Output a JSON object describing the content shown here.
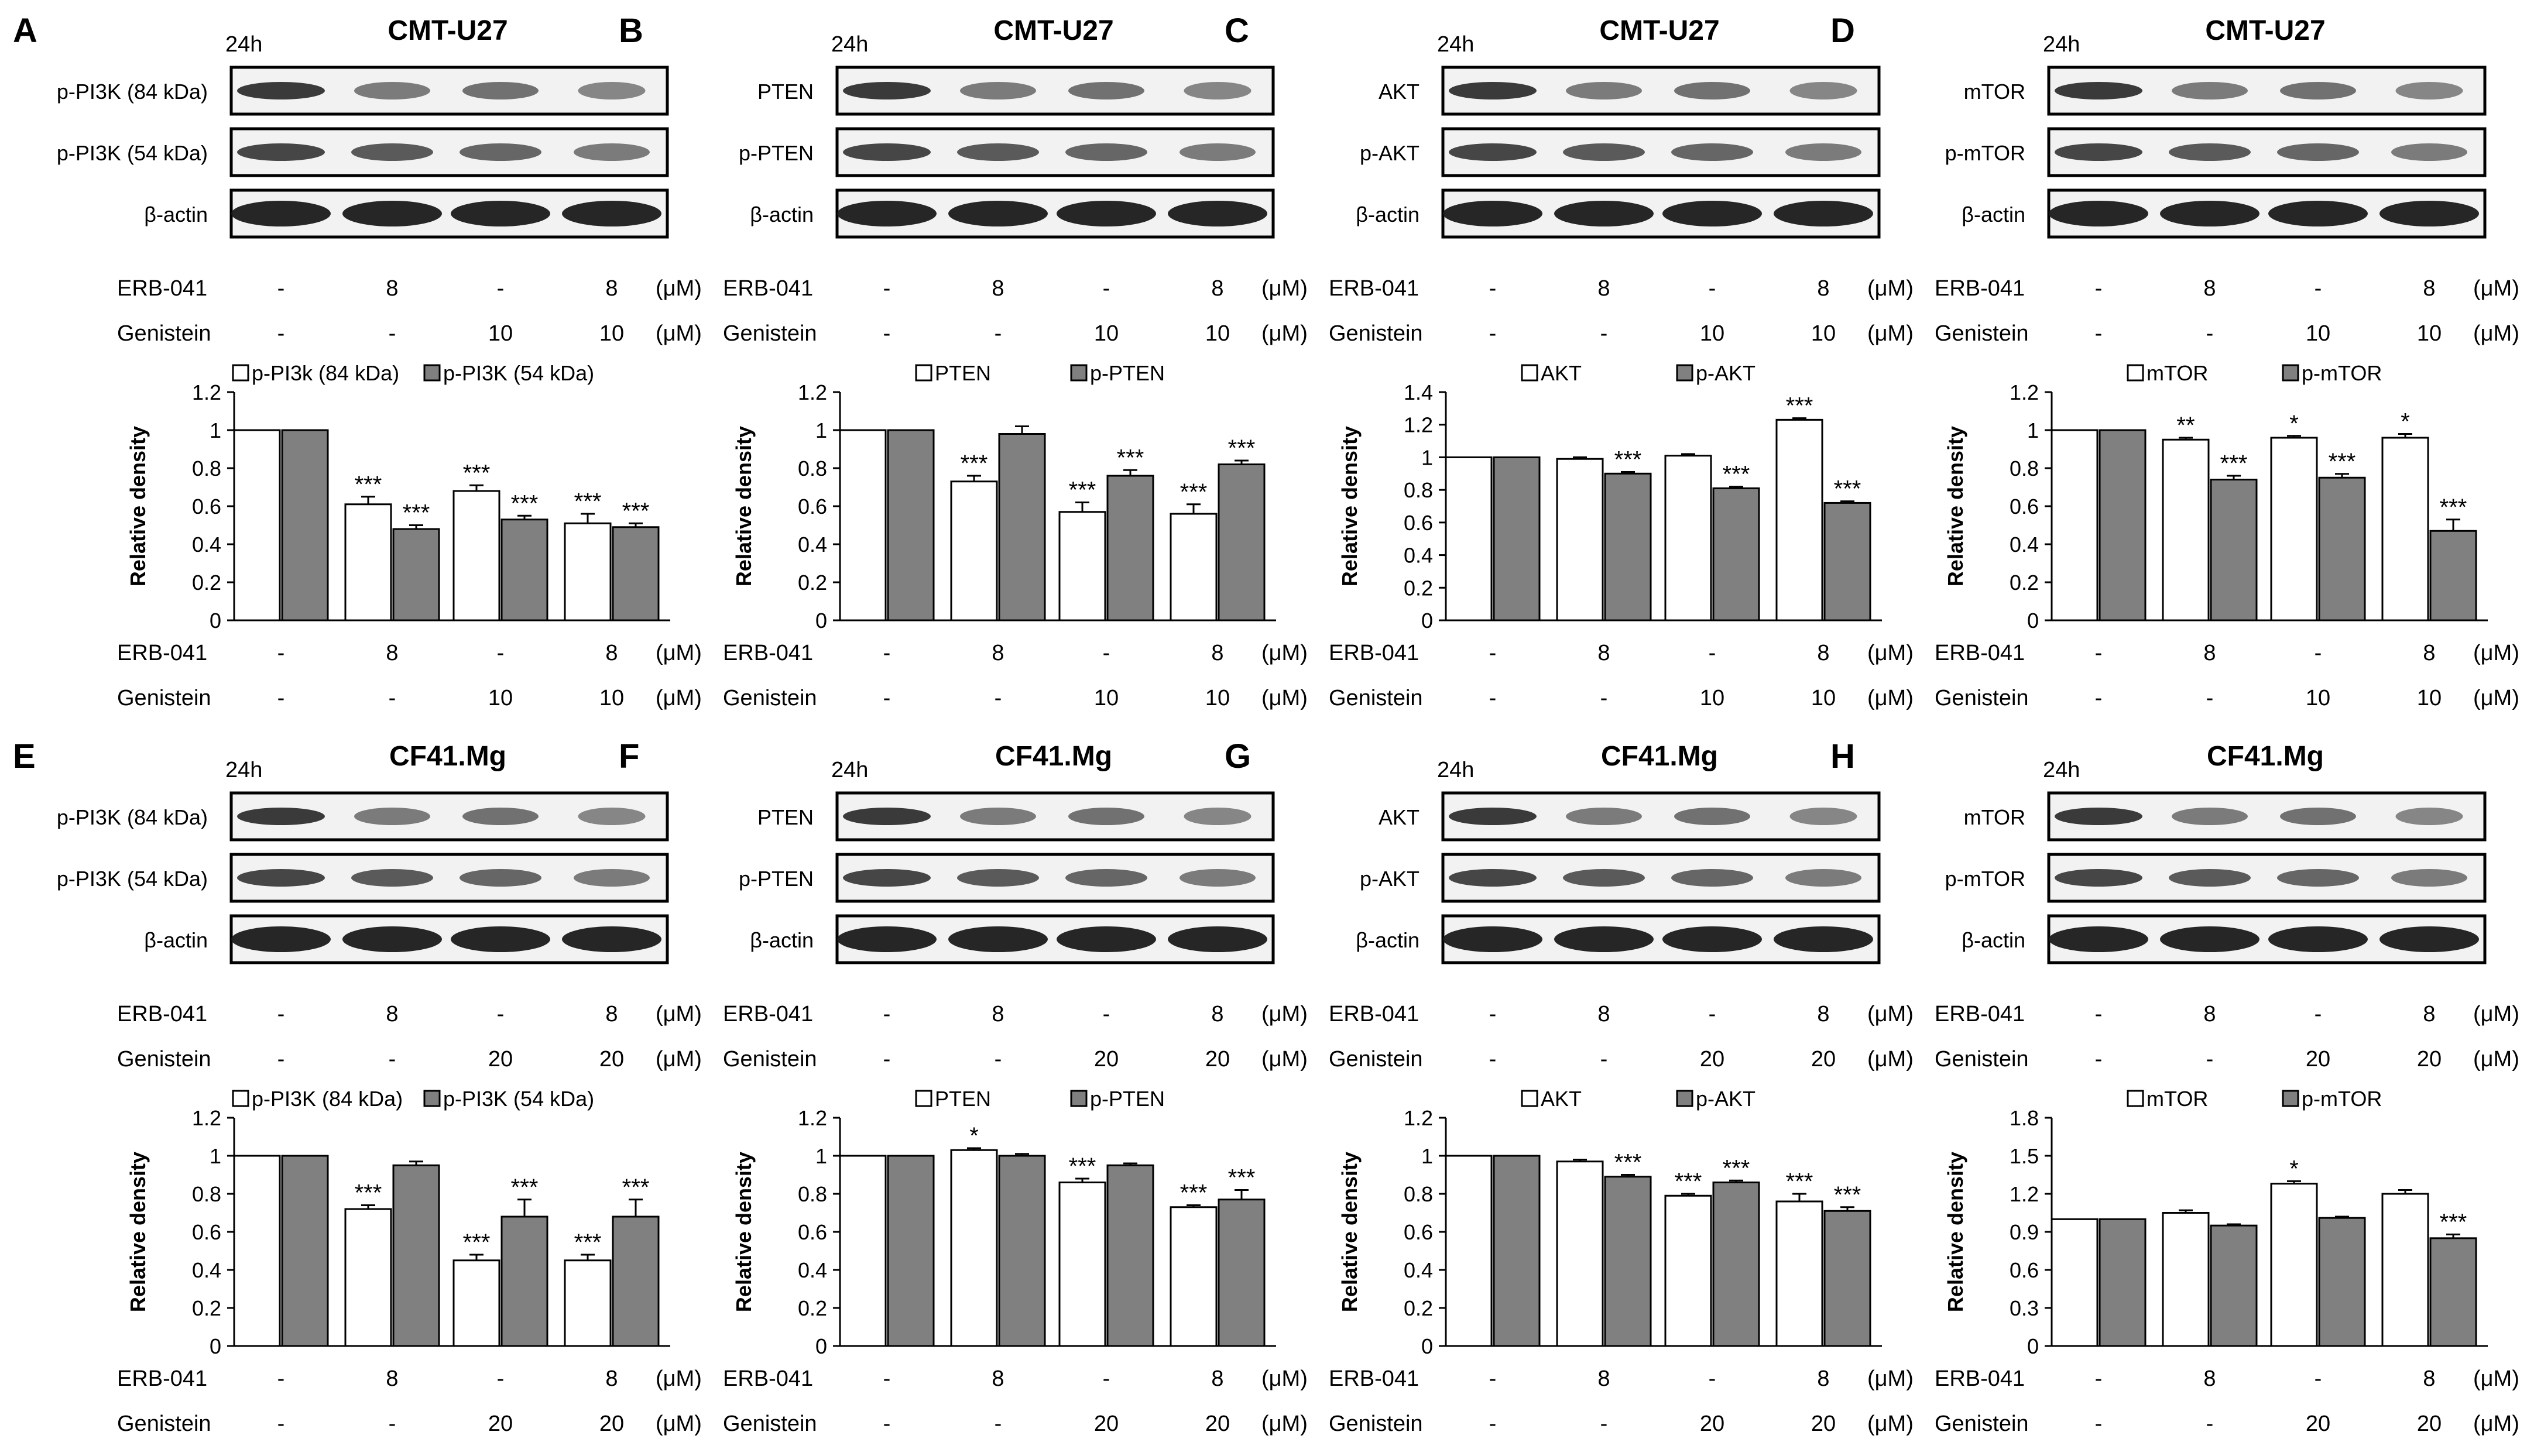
{
  "figure": {
    "time_label": "24h",
    "unit": "(μM)",
    "treatment_labels": [
      "ERB-041",
      "Genistein"
    ],
    "significance_note": "*"
  },
  "chart_data": [
    {
      "panel": "A",
      "cell_line": "CMT-U27",
      "type": "bar",
      "blot_rows": [
        "p-PI3K (84 kDa)",
        "p-PI3K (54 kDa)",
        "β-actin"
      ],
      "erb": [
        "-",
        "8",
        "-",
        "8"
      ],
      "gen": [
        "-",
        "-",
        "10",
        "10"
      ],
      "ylabel": "Relative density",
      "ylim": [
        0,
        1.2
      ],
      "yticks": [
        "0",
        "0.2",
        "0.4",
        "0.6",
        "0.8",
        "1",
        "1.2"
      ],
      "legend": [
        "p-PI3k (84 kDa)",
        "p-PI3K (54 kDa)"
      ],
      "series": [
        {
          "name": "p-PI3k (84 kDa)",
          "color": "#ffffff",
          "values": [
            1.0,
            0.61,
            0.68,
            0.51
          ],
          "errors": [
            0,
            0.04,
            0.03,
            0.05
          ],
          "sig": [
            "",
            "***",
            "***",
            "***"
          ]
        },
        {
          "name": "p-PI3K (54 kDa)",
          "color": "#808080",
          "values": [
            1.0,
            0.48,
            0.53,
            0.49
          ],
          "errors": [
            0,
            0.02,
            0.02,
            0.02
          ],
          "sig": [
            "",
            "***",
            "***",
            "***"
          ]
        }
      ]
    },
    {
      "panel": "B",
      "cell_line": "CMT-U27",
      "type": "bar",
      "blot_rows": [
        "PTEN",
        "p-PTEN",
        "β-actin"
      ],
      "erb": [
        "-",
        "8",
        "-",
        "8"
      ],
      "gen": [
        "-",
        "-",
        "10",
        "10"
      ],
      "ylabel": "Relative density",
      "ylim": [
        0,
        1.2
      ],
      "yticks": [
        "0",
        "0.2",
        "0.4",
        "0.6",
        "0.8",
        "1",
        "1.2"
      ],
      "legend": [
        "PTEN",
        "p-PTEN"
      ],
      "series": [
        {
          "name": "PTEN",
          "color": "#ffffff",
          "values": [
            1.0,
            0.73,
            0.57,
            0.56
          ],
          "errors": [
            0,
            0.03,
            0.05,
            0.05
          ],
          "sig": [
            "",
            "***",
            "***",
            "***"
          ]
        },
        {
          "name": "p-PTEN",
          "color": "#808080",
          "values": [
            1.0,
            0.98,
            0.76,
            0.82
          ],
          "errors": [
            0,
            0.04,
            0.03,
            0.02
          ],
          "sig": [
            "",
            "",
            "***",
            "***"
          ]
        }
      ]
    },
    {
      "panel": "C",
      "cell_line": "CMT-U27",
      "type": "bar",
      "blot_rows": [
        "AKT",
        "p-AKT",
        "β-actin"
      ],
      "erb": [
        "-",
        "8",
        "-",
        "8"
      ],
      "gen": [
        "-",
        "-",
        "10",
        "10"
      ],
      "ylabel": "Relative density",
      "ylim": [
        0,
        1.4
      ],
      "yticks": [
        "0",
        "0.2",
        "0.4",
        "0.6",
        "0.8",
        "1",
        "1.2",
        "1.4"
      ],
      "legend": [
        "AKT",
        "p-AKT"
      ],
      "series": [
        {
          "name": "AKT",
          "color": "#ffffff",
          "values": [
            1.0,
            0.99,
            1.01,
            1.23
          ],
          "errors": [
            0,
            0.01,
            0.01,
            0.01
          ],
          "sig": [
            "",
            "",
            "",
            "***"
          ]
        },
        {
          "name": "p-AKT",
          "color": "#808080",
          "values": [
            1.0,
            0.9,
            0.81,
            0.72
          ],
          "errors": [
            0,
            0.01,
            0.01,
            0.01
          ],
          "sig": [
            "",
            "***",
            "***",
            "***"
          ]
        }
      ]
    },
    {
      "panel": "D",
      "cell_line": "CMT-U27",
      "type": "bar",
      "blot_rows": [
        "mTOR",
        "p-mTOR",
        "β-actin"
      ],
      "erb": [
        "-",
        "8",
        "-",
        "8"
      ],
      "gen": [
        "-",
        "-",
        "10",
        "10"
      ],
      "ylabel": "Relative density",
      "ylim": [
        0,
        1.2
      ],
      "yticks": [
        "0",
        "0.2",
        "0.4",
        "0.6",
        "0.8",
        "1",
        "1.2"
      ],
      "legend": [
        "mTOR",
        "p-mTOR"
      ],
      "series": [
        {
          "name": "mTOR",
          "color": "#ffffff",
          "values": [
            1.0,
            0.95,
            0.96,
            0.96
          ],
          "errors": [
            0,
            0.01,
            0.01,
            0.02
          ],
          "sig": [
            "",
            "**",
            "*",
            "*"
          ]
        },
        {
          "name": "p-mTOR",
          "color": "#808080",
          "values": [
            1.0,
            0.74,
            0.75,
            0.47
          ],
          "errors": [
            0,
            0.02,
            0.02,
            0.06
          ],
          "sig": [
            "",
            "***",
            "***",
            "***"
          ]
        }
      ]
    },
    {
      "panel": "E",
      "cell_line": "CF41.Mg",
      "type": "bar",
      "blot_rows": [
        "p-PI3K (84 kDa)",
        "p-PI3K (54 kDa)",
        "β-actin"
      ],
      "erb": [
        "-",
        "8",
        "-",
        "8"
      ],
      "gen": [
        "-",
        "-",
        "20",
        "20"
      ],
      "ylabel": "Relative density",
      "ylim": [
        0,
        1.2
      ],
      "yticks": [
        "0",
        "0.2",
        "0.4",
        "0.6",
        "0.8",
        "1",
        "1.2"
      ],
      "legend": [
        "p-PI3K (84 kDa)",
        "p-PI3K (54 kDa)"
      ],
      "series": [
        {
          "name": "p-PI3K (84 kDa)",
          "color": "#ffffff",
          "values": [
            1.0,
            0.72,
            0.45,
            0.45
          ],
          "errors": [
            0,
            0.02,
            0.03,
            0.03
          ],
          "sig": [
            "",
            "***",
            "***",
            "***"
          ]
        },
        {
          "name": "p-PI3K (54 kDa)",
          "color": "#808080",
          "values": [
            1.0,
            0.95,
            0.68,
            0.68
          ],
          "errors": [
            0,
            0.02,
            0.09,
            0.09
          ],
          "sig": [
            "",
            "",
            "***",
            "***"
          ]
        }
      ]
    },
    {
      "panel": "F",
      "cell_line": "CF41.Mg",
      "type": "bar",
      "blot_rows": [
        "PTEN",
        "p-PTEN",
        "β-actin"
      ],
      "erb": [
        "-",
        "8",
        "-",
        "8"
      ],
      "gen": [
        "-",
        "-",
        "20",
        "20"
      ],
      "ylabel": "Relative density",
      "ylim": [
        0,
        1.2
      ],
      "yticks": [
        "0",
        "0.2",
        "0.4",
        "0.6",
        "0.8",
        "1",
        "1.2"
      ],
      "legend": [
        "PTEN",
        "p-PTEN"
      ],
      "series": [
        {
          "name": "PTEN",
          "color": "#ffffff",
          "values": [
            1.0,
            1.03,
            0.86,
            0.73
          ],
          "errors": [
            0,
            0.01,
            0.02,
            0.01
          ],
          "sig": [
            "",
            "*",
            "***",
            "***"
          ]
        },
        {
          "name": "p-PTEN",
          "color": "#808080",
          "values": [
            1.0,
            1.0,
            0.95,
            0.77
          ],
          "errors": [
            0,
            0.01,
            0.01,
            0.05
          ],
          "sig": [
            "",
            "",
            "",
            "***"
          ]
        }
      ]
    },
    {
      "panel": "G",
      "cell_line": "CF41.Mg",
      "type": "bar",
      "blot_rows": [
        "AKT",
        "p-AKT",
        "β-actin"
      ],
      "erb": [
        "-",
        "8",
        "-",
        "8"
      ],
      "gen": [
        "-",
        "-",
        "20",
        "20"
      ],
      "ylabel": "Relative density",
      "ylim": [
        0,
        1.2
      ],
      "yticks": [
        "0",
        "0.2",
        "0.4",
        "0.6",
        "0.8",
        "1",
        "1.2"
      ],
      "legend": [
        "AKT",
        "p-AKT"
      ],
      "series": [
        {
          "name": "AKT",
          "color": "#ffffff",
          "values": [
            1.0,
            0.97,
            0.79,
            0.76
          ],
          "errors": [
            0,
            0.01,
            0.01,
            0.04
          ],
          "sig": [
            "",
            "",
            "***",
            "***"
          ]
        },
        {
          "name": "p-AKT",
          "color": "#808080",
          "values": [
            1.0,
            0.89,
            0.86,
            0.71
          ],
          "errors": [
            0,
            0.01,
            0.01,
            0.02
          ],
          "sig": [
            "",
            "***",
            "***",
            "***"
          ]
        }
      ]
    },
    {
      "panel": "H",
      "cell_line": "CF41.Mg",
      "type": "bar",
      "blot_rows": [
        "mTOR",
        "p-mTOR",
        "β-actin"
      ],
      "erb": [
        "-",
        "8",
        "-",
        "8"
      ],
      "gen": [
        "-",
        "-",
        "20",
        "20"
      ],
      "ylabel": "Relative density",
      "ylim": [
        0,
        1.8
      ],
      "yticks": [
        "0",
        "0.3",
        "0.6",
        "0.9",
        "1.2",
        "1.5",
        "1.8"
      ],
      "legend": [
        "mTOR",
        "p-mTOR"
      ],
      "series": [
        {
          "name": "mTOR",
          "color": "#ffffff",
          "values": [
            1.0,
            1.05,
            1.28,
            1.2
          ],
          "errors": [
            0,
            0.02,
            0.02,
            0.03
          ],
          "sig": [
            "",
            "",
            "*",
            ""
          ]
        },
        {
          "name": "p-mTOR",
          "color": "#808080",
          "values": [
            1.0,
            0.95,
            1.01,
            0.85
          ],
          "errors": [
            0,
            0.01,
            0.01,
            0.03
          ],
          "sig": [
            "",
            "",
            "",
            "***"
          ]
        }
      ]
    }
  ]
}
